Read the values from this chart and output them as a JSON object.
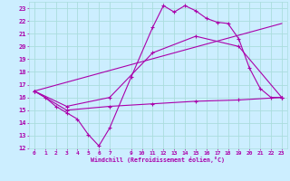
{
  "xlabel": "Windchill (Refroidissement éolien,°C)",
  "bg_color": "#cceeff",
  "grid_color": "#aadddd",
  "line_color": "#aa00aa",
  "xlim": [
    -0.5,
    23.5
  ],
  "ylim": [
    12,
    23.5
  ],
  "xticks": [
    0,
    1,
    2,
    3,
    4,
    5,
    6,
    7,
    9,
    10,
    11,
    12,
    13,
    14,
    15,
    16,
    17,
    18,
    19,
    20,
    21,
    22,
    23
  ],
  "yticks": [
    12,
    13,
    14,
    15,
    16,
    17,
    18,
    19,
    20,
    21,
    22,
    23
  ],
  "series1_x": [
    0,
    1,
    2,
    3,
    4,
    5,
    6,
    7,
    9,
    11,
    12,
    13,
    14,
    15,
    16,
    17,
    18,
    19,
    20,
    21,
    22,
    23
  ],
  "series1_y": [
    16.5,
    16.0,
    15.3,
    14.8,
    14.3,
    13.1,
    12.2,
    13.6,
    17.6,
    21.5,
    23.2,
    22.7,
    23.2,
    22.8,
    22.2,
    21.9,
    21.8,
    20.6,
    18.3,
    16.7,
    16.0,
    16.0
  ],
  "series2_x": [
    0,
    3,
    7,
    11,
    15,
    19,
    23
  ],
  "series2_y": [
    16.5,
    15.3,
    16.0,
    19.5,
    20.8,
    20.0,
    16.0
  ],
  "series3_x": [
    0,
    3,
    7,
    11,
    15,
    19,
    23
  ],
  "series3_y": [
    16.5,
    15.0,
    15.3,
    15.5,
    15.7,
    15.8,
    16.0
  ],
  "series4_x": [
    0,
    23
  ],
  "series4_y": [
    16.5,
    21.8
  ]
}
